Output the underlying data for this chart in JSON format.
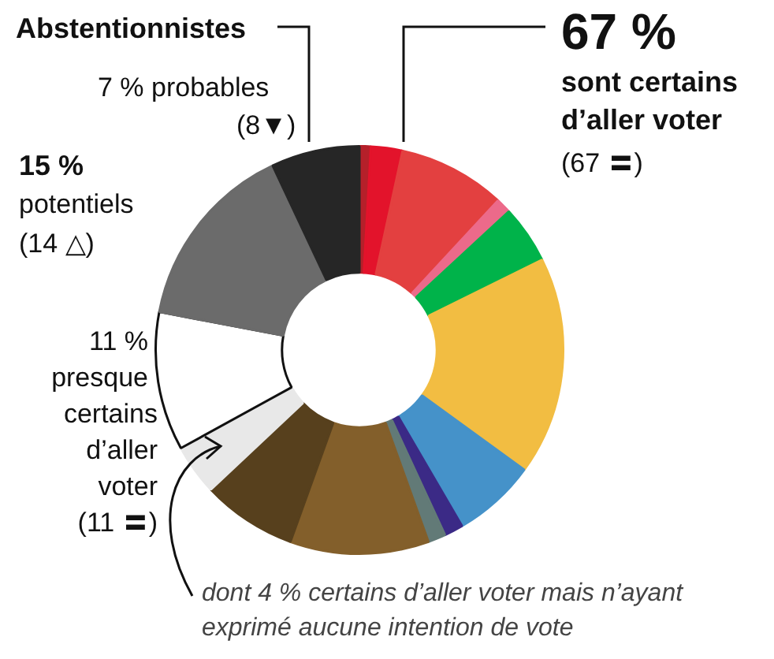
{
  "chart_data": {
    "type": "donut",
    "categories": [
      null,
      null,
      null,
      null,
      null,
      null,
      null,
      null,
      null,
      null,
      null,
      null,
      null,
      null,
      null
    ],
    "values": [
      0.9,
      2.5,
      8.5,
      1.2,
      4.6,
      17.3,
      6.6,
      1.5,
      1.4,
      11.0,
      7.5,
      4,
      11,
      15,
      7
    ],
    "colors": [
      "#b5202a",
      "#e3132b",
      "#e34040",
      "#ec6a8a",
      "#00b34a",
      "#f2bd42",
      "#4592c9",
      "#3b2a86",
      "#627a77",
      "#835f2b",
      "#57401d",
      "#e8e8e8",
      "#ffffff",
      "#6b6b6b",
      "#262626"
    ],
    "legend": false,
    "annotations": [
      "Abstentionnistes",
      "7 % probables",
      "(8▼)",
      "15 %",
      "potentiels",
      "(14 △)",
      "67 %",
      "sont certains",
      "d’aller voter",
      "(67 〓)",
      "11 %",
      "presque",
      "certains",
      "d’aller",
      "voter",
      "(11 〓)",
      "dont 4 % certains d’aller voter mais n’ayant exprimé aucune intention de vote"
    ]
  }
}
